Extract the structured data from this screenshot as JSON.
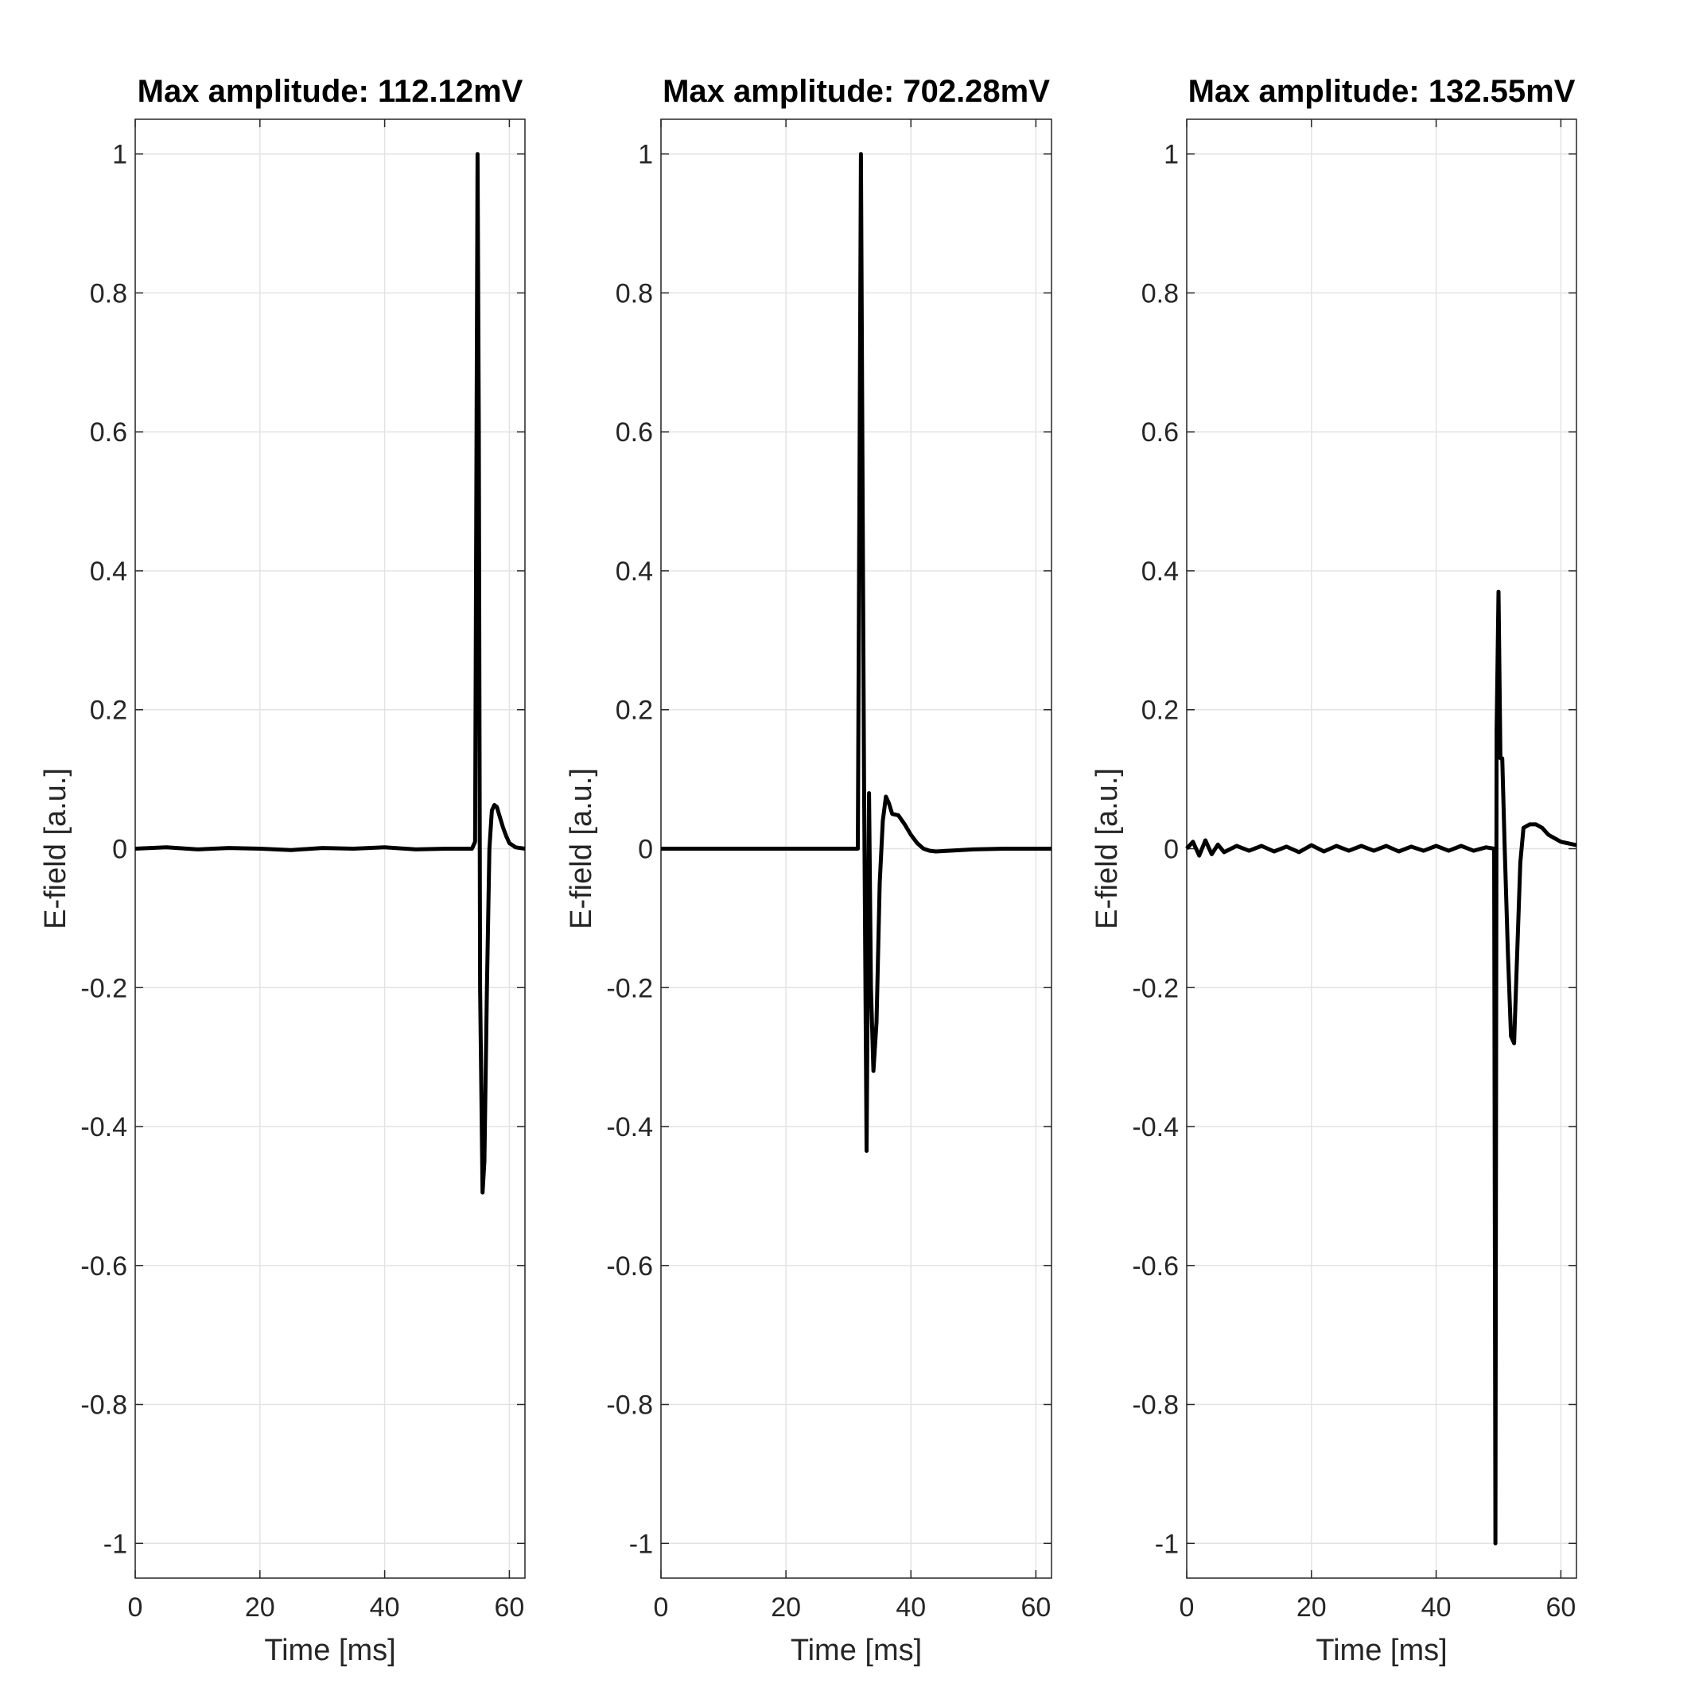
{
  "chart_data": [
    {
      "type": "line",
      "title": "Max amplitude: 112.12mV",
      "xlabel": "Time [ms]",
      "ylabel": "E-field [a.u.]",
      "xlim": [
        0,
        62.5
      ],
      "ylim": [
        -1.05,
        1.05
      ],
      "xticks": [
        0,
        20,
        40,
        60
      ],
      "yticks": [
        1,
        0.8,
        0.6,
        0.4,
        0.2,
        0,
        -0.2,
        -0.4,
        -0.6,
        -0.8,
        -1
      ],
      "grid": true,
      "series": [
        {
          "color": "#000000",
          "x": [
            0,
            5,
            10,
            15,
            20,
            25,
            30,
            35,
            40,
            45,
            50,
            54,
            54.5,
            54.9,
            55.1,
            55.3,
            55.7,
            56.0,
            56.4,
            56.8,
            57.2,
            57.6,
            58.0,
            58.5,
            59,
            59.5,
            60,
            61,
            62.5
          ],
          "y": [
            0,
            0.002,
            -0.001,
            0.001,
            0,
            -0.002,
            0.001,
            0,
            0.002,
            -0.001,
            0,
            0,
            0.01,
            1.0,
            0.6,
            -0.2,
            -0.495,
            -0.45,
            -0.2,
            0.0,
            0.055,
            0.063,
            0.06,
            0.045,
            0.03,
            0.018,
            0.008,
            0.002,
            0
          ]
        }
      ]
    },
    {
      "type": "line",
      "title": "Max amplitude: 702.28mV",
      "xlabel": "Time [ms]",
      "ylabel": "E-field [a.u.]",
      "xlim": [
        0,
        62.5
      ],
      "ylim": [
        -1.05,
        1.05
      ],
      "xticks": [
        0,
        20,
        40,
        60
      ],
      "yticks": [
        1,
        0.8,
        0.6,
        0.4,
        0.2,
        0,
        -0.2,
        -0.4,
        -0.6,
        -0.8,
        -1
      ],
      "grid": true,
      "series": [
        {
          "color": "#000000",
          "x": [
            0,
            10,
            20,
            30,
            31.5,
            32.0,
            32.5,
            32.9,
            33.3,
            33.6,
            34.0,
            34.5,
            35,
            35.5,
            36.0,
            36.5,
            37,
            38,
            39,
            40,
            41,
            42,
            43,
            44,
            46,
            50,
            55,
            62.5
          ],
          "y": [
            0,
            0,
            0,
            0,
            0,
            1.0,
            0.1,
            -0.435,
            0.08,
            -0.2,
            -0.32,
            -0.25,
            -0.05,
            0.04,
            0.075,
            0.065,
            0.05,
            0.048,
            0.035,
            0.02,
            0.008,
            0.0,
            -0.003,
            -0.004,
            -0.003,
            -0.001,
            0,
            0
          ]
        }
      ]
    },
    {
      "type": "line",
      "title": "Max amplitude: 132.55mV",
      "xlabel": "Time [ms]",
      "ylabel": "E-field [a.u.]",
      "xlim": [
        0,
        62.5
      ],
      "ylim": [
        -1.05,
        1.05
      ],
      "xticks": [
        0,
        20,
        40,
        60
      ],
      "yticks": [
        1,
        0.8,
        0.6,
        0.4,
        0.2,
        0,
        -0.2,
        -0.4,
        -0.6,
        -0.8,
        -1
      ],
      "grid": true,
      "series": [
        {
          "color": "#000000",
          "x": [
            0,
            1,
            2,
            3,
            4,
            5,
            6,
            8,
            10,
            12,
            14,
            16,
            18,
            20,
            22,
            24,
            26,
            28,
            30,
            32,
            34,
            36,
            38,
            40,
            42,
            44,
            46,
            48,
            49.3,
            49.5,
            49.7,
            50.0,
            50.3,
            50.6,
            51.0,
            51.5,
            52.0,
            52.5,
            53.0,
            53.5,
            54.0,
            55,
            56,
            57,
            58,
            59,
            60,
            61,
            62.5
          ],
          "y": [
            0,
            0.01,
            -0.01,
            0.012,
            -0.008,
            0.006,
            -0.005,
            0.004,
            -0.003,
            0.004,
            -0.004,
            0.003,
            -0.005,
            0.005,
            -0.004,
            0.004,
            -0.003,
            0.004,
            -0.003,
            0.004,
            -0.004,
            0.003,
            -0.003,
            0.004,
            -0.003,
            0.004,
            -0.003,
            0.002,
            0,
            -1.0,
            0.17,
            0.37,
            0.13,
            0.13,
            0.0,
            -0.15,
            -0.27,
            -0.28,
            -0.15,
            -0.02,
            0.03,
            0.035,
            0.035,
            0.03,
            0.02,
            0.015,
            0.01,
            0.008,
            0.005
          ]
        }
      ]
    }
  ]
}
